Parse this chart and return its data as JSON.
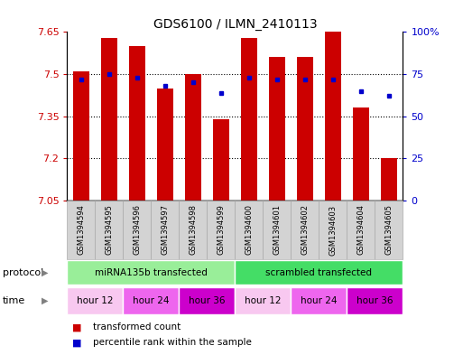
{
  "title": "GDS6100 / ILMN_2410113",
  "samples": [
    "GSM1394594",
    "GSM1394595",
    "GSM1394596",
    "GSM1394597",
    "GSM1394598",
    "GSM1394599",
    "GSM1394600",
    "GSM1394601",
    "GSM1394602",
    "GSM1394603",
    "GSM1394604",
    "GSM1394605"
  ],
  "transformed_counts": [
    7.51,
    7.63,
    7.6,
    7.45,
    7.5,
    7.34,
    7.63,
    7.56,
    7.56,
    7.65,
    7.38,
    7.2
  ],
  "percentile_ranks": [
    72,
    75,
    73,
    68,
    70,
    64,
    73,
    72,
    72,
    72,
    65,
    62
  ],
  "ymin": 7.05,
  "ymax": 7.65,
  "yticks": [
    7.05,
    7.2,
    7.35,
    7.5,
    7.65
  ],
  "y2ticks_labels": [
    "0",
    "25",
    "50",
    "75",
    "100%"
  ],
  "y2ticks_vals": [
    0,
    25,
    50,
    75,
    100
  ],
  "bar_color": "#cc0000",
  "dot_color": "#0000cc",
  "bar_width": 0.6,
  "grid_lines": [
    7.2,
    7.35,
    7.5
  ],
  "protocol_groups": [
    {
      "label": "miRNA135b transfected",
      "start": 0,
      "end": 6,
      "color": "#99ee99"
    },
    {
      "label": "scrambled transfected",
      "start": 6,
      "end": 12,
      "color": "#44dd66"
    }
  ],
  "time_groups": [
    {
      "label": "hour 12",
      "start": 0,
      "end": 2,
      "color": "#f8c8f0"
    },
    {
      "label": "hour 24",
      "start": 2,
      "end": 4,
      "color": "#ee66ee"
    },
    {
      "label": "hour 36",
      "start": 4,
      "end": 6,
      "color": "#cc00cc"
    },
    {
      "label": "hour 12",
      "start": 6,
      "end": 8,
      "color": "#f8c8f0"
    },
    {
      "label": "hour 24",
      "start": 8,
      "end": 10,
      "color": "#ee66ee"
    },
    {
      "label": "hour 36",
      "start": 10,
      "end": 12,
      "color": "#cc00cc"
    }
  ],
  "sample_bg_color": "#d3d3d3",
  "sample_edge_color": "#aaaaaa",
  "legend_items": [
    {
      "color": "#cc0000",
      "label": "transformed count"
    },
    {
      "color": "#0000cc",
      "label": "percentile rank within the sample"
    }
  ],
  "protocol_label": "protocol",
  "time_label": "time",
  "title_fontsize": 10,
  "axis_fontsize": 8,
  "sample_fontsize": 6,
  "row_fontsize": 7.5,
  "legend_fontsize": 8
}
